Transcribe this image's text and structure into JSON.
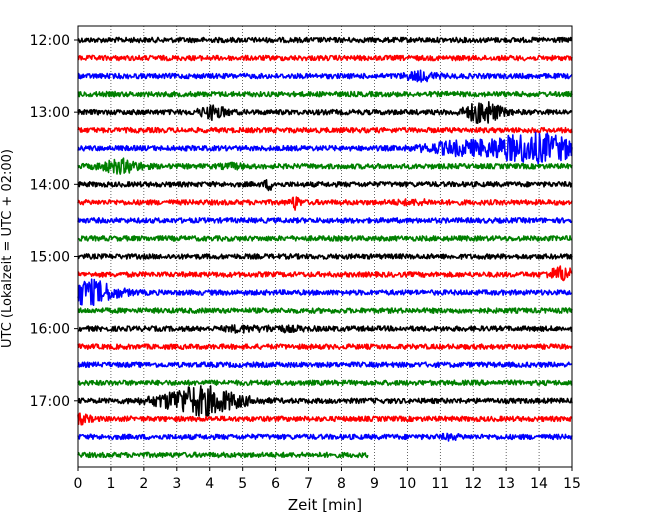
{
  "chart_data": {
    "type": "line",
    "title": "",
    "xlabel": "Zeit  [min]",
    "ylabel": "UTC (Lokalzeit = UTC + 02:00)",
    "xlim": [
      0,
      15
    ],
    "x_ticks": [
      "0",
      "1",
      "2",
      "3",
      "4",
      "5",
      "6",
      "7",
      "8",
      "9",
      "10",
      "11",
      "12",
      "13",
      "14",
      "15"
    ],
    "y_tick_labels": [
      "12:00",
      "13:00",
      "14:00",
      "15:00",
      "16:00",
      "17:00"
    ],
    "grid": "vertical dotted at each minute",
    "trace_interval_minutes": 15,
    "trace_colors_cycle": [
      "#000000",
      "#ff0000",
      "#0000ff",
      "#008000"
    ],
    "traces": [
      {
        "start": "12:00",
        "color": "#000000",
        "end_min": 15,
        "events": []
      },
      {
        "start": "12:15",
        "color": "#ff0000",
        "end_min": 15,
        "events": []
      },
      {
        "start": "12:30",
        "color": "#0000ff",
        "end_min": 15,
        "events": [
          {
            "min": 10.4,
            "amp": 0.45,
            "dur": 0.7
          }
        ]
      },
      {
        "start": "12:45",
        "color": "#008000",
        "end_min": 15,
        "events": []
      },
      {
        "start": "13:00",
        "color": "#000000",
        "end_min": 15,
        "events": [
          {
            "min": 4.1,
            "amp": 0.7,
            "dur": 0.6
          },
          {
            "min": 12.3,
            "amp": 1.3,
            "dur": 0.8
          }
        ]
      },
      {
        "start": "13:15",
        "color": "#ff0000",
        "end_min": 15,
        "events": []
      },
      {
        "start": "13:30",
        "color": "#0000ff",
        "end_min": 15,
        "events": [
          {
            "min": 11.4,
            "amp": 0.55,
            "dur": 1.5
          },
          {
            "min": 13.8,
            "amp": 1.7,
            "dur": 2.4
          }
        ]
      },
      {
        "start": "13:45",
        "color": "#008000",
        "end_min": 15,
        "events": [
          {
            "min": 1.3,
            "amp": 0.7,
            "dur": 0.9
          },
          {
            "min": 4.7,
            "amp": 0.2,
            "dur": 0.5
          }
        ]
      },
      {
        "start": "14:00",
        "color": "#000000",
        "end_min": 15,
        "events": [
          {
            "min": 5.8,
            "amp": 0.55,
            "dur": 0.2
          }
        ]
      },
      {
        "start": "14:15",
        "color": "#ff0000",
        "end_min": 15,
        "events": [
          {
            "min": 6.6,
            "amp": 0.75,
            "dur": 0.2
          },
          {
            "min": 10.2,
            "amp": 0.15,
            "dur": 1.0
          }
        ]
      },
      {
        "start": "14:30",
        "color": "#0000ff",
        "end_min": 15,
        "events": []
      },
      {
        "start": "14:45",
        "color": "#008000",
        "end_min": 15,
        "events": []
      },
      {
        "start": "15:00",
        "color": "#000000",
        "end_min": 15,
        "events": []
      },
      {
        "start": "15:15",
        "color": "#ff0000",
        "end_min": 15,
        "events": [
          {
            "min": 14.7,
            "amp": 0.8,
            "dur": 0.6
          }
        ]
      },
      {
        "start": "15:30",
        "color": "#0000ff",
        "end_min": 15,
        "events": [
          {
            "min": 0.3,
            "amp": 1.4,
            "dur": 1.3
          }
        ]
      },
      {
        "start": "15:45",
        "color": "#008000",
        "end_min": 15,
        "events": []
      },
      {
        "start": "16:00",
        "color": "#000000",
        "end_min": 15,
        "events": [
          {
            "min": 4.9,
            "amp": 0.25,
            "dur": 0.6
          },
          {
            "min": 6.1,
            "amp": 0.2,
            "dur": 1.2
          }
        ]
      },
      {
        "start": "16:15",
        "color": "#ff0000",
        "end_min": 15,
        "events": []
      },
      {
        "start": "16:30",
        "color": "#0000ff",
        "end_min": 15,
        "events": []
      },
      {
        "start": "16:45",
        "color": "#008000",
        "end_min": 15,
        "events": []
      },
      {
        "start": "17:00",
        "color": "#000000",
        "end_min": 15,
        "events": [
          {
            "min": 3.7,
            "amp": 1.7,
            "dur": 1.8
          }
        ]
      },
      {
        "start": "17:15",
        "color": "#ff0000",
        "end_min": 15,
        "events": [
          {
            "min": 0.1,
            "amp": 0.45,
            "dur": 0.4
          }
        ]
      },
      {
        "start": "17:30",
        "color": "#0000ff",
        "end_min": 15,
        "events": [
          {
            "min": 11.3,
            "amp": 0.2,
            "dur": 0.4
          }
        ]
      },
      {
        "start": "17:45",
        "color": "#008000",
        "end_min": 8.8,
        "events": []
      }
    ]
  }
}
